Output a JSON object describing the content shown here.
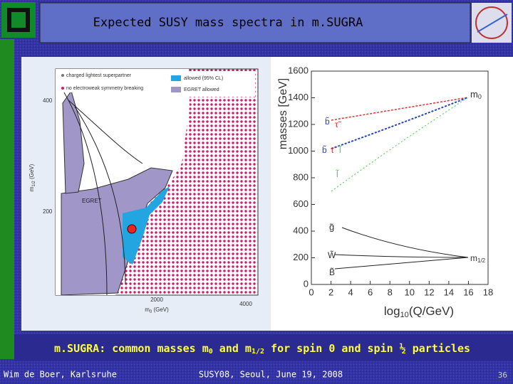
{
  "header": {
    "title": "Expected SUSY mass spectra in  m.SUGRA"
  },
  "left_plot": {
    "legend": [
      "charged lightest superpartner",
      "no electroweak symmetry breaking",
      "allowed (95% CL)",
      "EGRET allowed"
    ],
    "y_axis_label": [
      "m",
      "1/2",
      " (GeV)"
    ],
    "y_ticks": [
      "400",
      "200"
    ],
    "x_ticks": [
      "2000",
      "4000"
    ],
    "x_axis_label": [
      "m",
      "0",
      " (GeV)"
    ],
    "region_label": "EGRET"
  },
  "right_plot": {
    "y_axis_label": "masses [GeV]",
    "x_axis_label": [
      "log",
      "10",
      "(Q/GeV)"
    ],
    "yticks": [
      0,
      200,
      400,
      600,
      800,
      1000,
      1200,
      1400,
      1600
    ],
    "xticks": [
      0,
      2,
      4,
      6,
      8,
      10,
      12,
      14,
      16,
      18
    ],
    "curve_labels": {
      "m0": [
        "m",
        "0"
      ],
      "m12": [
        "m",
        "1/2"
      ]
    },
    "particle_labels": [
      "b̃",
      "τ̃",
      "b̃",
      "τ̃",
      "l̃",
      "l̃",
      "g̃",
      "W̃",
      "B̃"
    ]
  },
  "caption": [
    "m.SUGRA: common masses m",
    "0",
    " and m",
    "1/2",
    " for spin 0 and spin ½ particles"
  ],
  "footer": {
    "author": "Wim de Boer, Karlsruhe",
    "event": "SUSY08, Seoul, June 19, 2008",
    "page": "36"
  }
}
